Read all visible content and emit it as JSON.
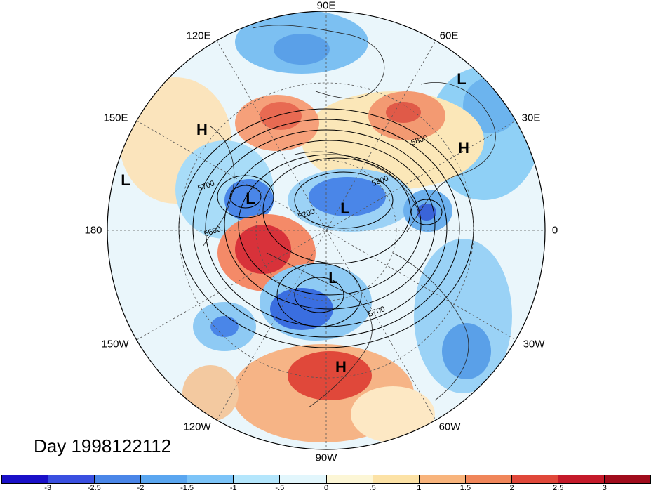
{
  "title": "Day 1998122112",
  "longitude_labels": {
    "n": "90E",
    "e120": "120E",
    "e60": "60E",
    "e150": "150E",
    "e30": "30E",
    "w180": "180",
    "zero": "0",
    "w150": "150W",
    "w30": "30W",
    "w120": "120W",
    "w60": "60W",
    "s": "90W"
  },
  "pressure_centers": [
    {
      "label": "L",
      "id": "low-nw-atlantic"
    },
    {
      "label": "H",
      "id": "high-east-asia"
    },
    {
      "label": "H",
      "id": "high-europe"
    },
    {
      "label": "L",
      "id": "low-pacific"
    },
    {
      "label": "L",
      "id": "low-okhotsk"
    },
    {
      "label": "L",
      "id": "low-siberia"
    },
    {
      "label": "L",
      "id": "low-canada"
    },
    {
      "label": "H",
      "id": "high-mexico"
    }
  ],
  "contour_labels": [
    "5800",
    "5700",
    "5300",
    "5600",
    "5200",
    "5700"
  ],
  "colorbar": {
    "colors": [
      "#1a10c8",
      "#3a4fe0",
      "#4a86e8",
      "#5aa6f0",
      "#7cc4f8",
      "#b4e6fc",
      "#e2f6fc",
      "#fcf6d6",
      "#fce2a6",
      "#f8b47c",
      "#f0865a",
      "#e0483a",
      "#c41a2a",
      "#a00c1c"
    ],
    "ticks": [
      "-3",
      "-2.5",
      "-2",
      "-1.5",
      "-1",
      "-.5",
      "0",
      ".5",
      "1",
      "1.5",
      "2",
      "2.5",
      "3"
    ]
  }
}
